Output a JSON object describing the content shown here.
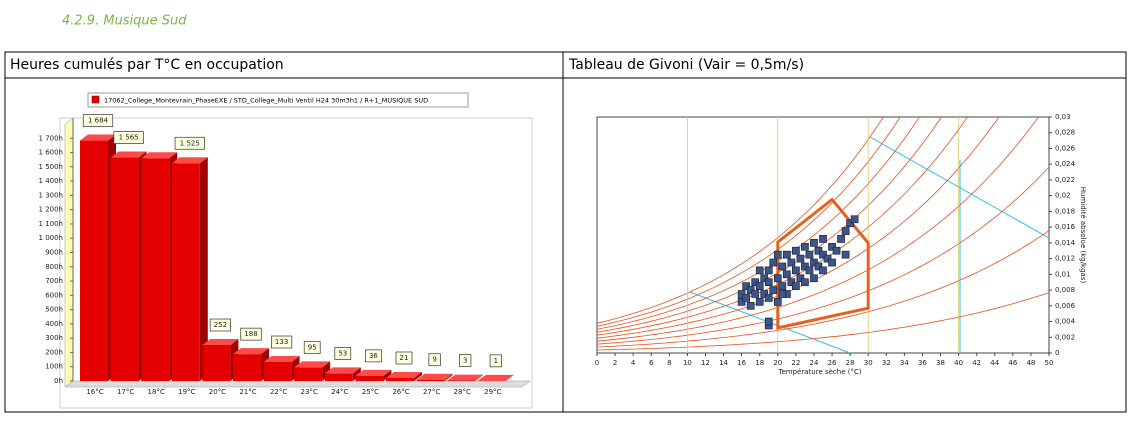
{
  "heading": "4.2.9. Musique Sud",
  "table": {
    "headers": [
      "Heures cumulés par T°C en occupation",
      "Tableau de Givoni (Vair = 0,5m/s)"
    ]
  },
  "chart_data": [
    {
      "type": "bar",
      "categories": [
        "16°C",
        "17°C",
        "18°C",
        "19°C",
        "20°C",
        "21°C",
        "22°C",
        "23°C",
        "24°C",
        "25°C",
        "26°C",
        "27°C",
        "28°C",
        "29°C"
      ],
      "series": [
        {
          "name": "17062_College_Montevrain_PhaseEXE / STD_College_Multi Ventil H24 30m3h1 / R+1_MUSIQUE SUD",
          "color": "#e50000",
          "values": [
            1684,
            1565,
            1560,
            1525,
            252,
            188,
            133,
            95,
            53,
            36,
            21,
            9,
            3,
            1
          ],
          "value_labels": [
            "1 684",
            "1 565",
            null,
            "1 525",
            "252",
            "188",
            "133",
            "95",
            "53",
            "36",
            "21",
            "9",
            "3",
            "1"
          ]
        }
      ],
      "ylim": [
        0,
        1800
      ],
      "yticks": [
        {
          "value": 0,
          "label": "0h"
        },
        {
          "value": 100,
          "label": "100h"
        },
        {
          "value": 200,
          "label": "200h"
        },
        {
          "value": 300,
          "label": "300h"
        },
        {
          "value": 400,
          "label": "400h"
        },
        {
          "value": 500,
          "label": "500h"
        },
        {
          "value": 600,
          "label": "600h"
        },
        {
          "value": 700,
          "label": "700h"
        },
        {
          "value": 800,
          "label": "800h"
        },
        {
          "value": 900,
          "label": "900h"
        },
        {
          "value": 1000,
          "label": "1 000h"
        },
        {
          "value": 1100,
          "label": "1 100h"
        },
        {
          "value": 1200,
          "label": "1 200h"
        },
        {
          "value": 1300,
          "label": "1 300h"
        },
        {
          "value": 1400,
          "label": "1 400h"
        },
        {
          "value": 1500,
          "label": "1 500h"
        },
        {
          "value": 1600,
          "label": "1 600h"
        },
        {
          "value": 1700,
          "label": "1 700h"
        }
      ],
      "legend": "top"
    },
    {
      "type": "scatter",
      "x_label": "Température sèche (°C)",
      "y_label": "Humidité absolue (kg/kgas)",
      "x": [
        16,
        16,
        16.5,
        16.5,
        17,
        17,
        17.5,
        17.5,
        18,
        18,
        18.5,
        18.5,
        19,
        19,
        19,
        19.5,
        19.5,
        20,
        20,
        20,
        20.5,
        20.5,
        21,
        21,
        21,
        21.5,
        21.5,
        22,
        22,
        22,
        22.5,
        22.5,
        23,
        23,
        23,
        23.5,
        23.5,
        24,
        24,
        24,
        24.5,
        24.5,
        25,
        25,
        25,
        25.5,
        26,
        26,
        26.5,
        27,
        27.5,
        28,
        28.5,
        19,
        19,
        27.5,
        20.5,
        18
      ],
      "y": [
        0.0065,
        0.0075,
        0.007,
        0.0085,
        0.006,
        0.008,
        0.0075,
        0.009,
        0.0065,
        0.0085,
        0.0075,
        0.0095,
        0.007,
        0.009,
        0.0105,
        0.008,
        0.0115,
        0.0065,
        0.0095,
        0.0125,
        0.0085,
        0.011,
        0.0075,
        0.01,
        0.0125,
        0.009,
        0.0115,
        0.0085,
        0.0105,
        0.013,
        0.0095,
        0.012,
        0.009,
        0.011,
        0.0135,
        0.0105,
        0.0125,
        0.0095,
        0.0115,
        0.014,
        0.011,
        0.013,
        0.0105,
        0.0125,
        0.0145,
        0.012,
        0.0115,
        0.0135,
        0.013,
        0.0145,
        0.0155,
        0.0165,
        0.017,
        0.0035,
        0.004,
        0.0125,
        0.0075,
        0.0105
      ],
      "color": "#3d5588",
      "zone": {
        "x": [
          20,
          20,
          26,
          30,
          30
        ],
        "y": [
          0.0032,
          0.0141,
          0.0195,
          0.014,
          0.0057
        ],
        "color": "#e8601c"
      },
      "xlim": [
        0,
        50
      ],
      "xticks": [
        0,
        2,
        4,
        6,
        8,
        10,
        12,
        14,
        16,
        18,
        20,
        22,
        24,
        26,
        28,
        30,
        32,
        34,
        36,
        38,
        40,
        42,
        44,
        46,
        48,
        50
      ],
      "ylim": [
        0,
        0.03
      ],
      "yticks": [
        0,
        {
          "value": 0.002,
          "label": "0,002"
        },
        {
          "value": 0.004,
          "label": "0,004"
        },
        {
          "value": 0.006,
          "label": "0,006"
        },
        {
          "value": 0.008,
          "label": "0,008"
        },
        {
          "value": 0.01,
          "label": "0,01"
        },
        {
          "value": 0.012,
          "label": "0,012"
        },
        {
          "value": 0.014,
          "label": "0,014"
        },
        {
          "value": 0.016,
          "label": "0,016"
        },
        {
          "value": 0.018,
          "label": "0,018"
        },
        {
          "value": 0.02,
          "label": "0,02"
        },
        {
          "value": 0.022,
          "label": "0,022"
        },
        {
          "value": 0.024,
          "label": "0,024"
        },
        {
          "value": 0.026,
          "label": "0,026"
        },
        {
          "value": 0.028,
          "label": "0,028"
        },
        {
          "value": 0.03,
          "label": "0,03"
        }
      ],
      "grid": true,
      "y_axis_side": "right"
    }
  ]
}
